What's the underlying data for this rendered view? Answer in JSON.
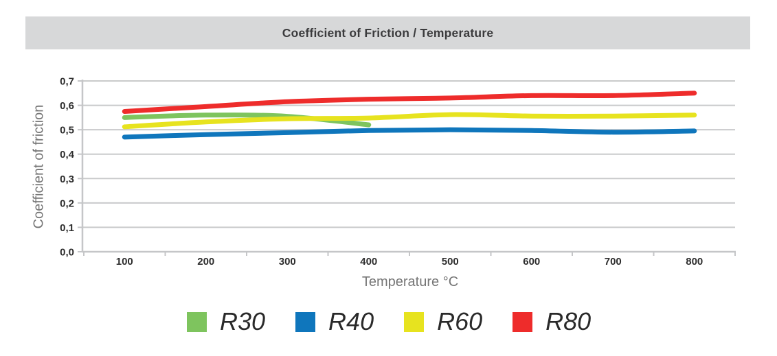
{
  "header": {
    "title": "Coefficient of Friction / Temperature"
  },
  "colors": {
    "title_bar_bg": "#D7D8D9",
    "title_text": "#3B3B3D",
    "gridline": "#C9CACB",
    "axis_line": "#C5C6C8",
    "tick_text": "#2D2D2D",
    "axis_title_text": "#757575",
    "legend_text": "#2A2A2A"
  },
  "chart_data": {
    "type": "line",
    "title": "Coefficient of Friction / Temperature",
    "xlabel": "Temperature °C",
    "ylabel": "Coefficient of friction",
    "x_tick_labels": [
      "100",
      "200",
      "300",
      "400",
      "500",
      "600",
      "700",
      "800"
    ],
    "y_tick_labels": [
      "0,0",
      "0,1",
      "0,2",
      "0,3",
      "0,4",
      "0,5",
      "0,6",
      "0,7"
    ],
    "ylim": [
      0.0,
      0.7
    ],
    "y_step": 0.1,
    "xlim_categories": [
      100,
      800
    ],
    "grid": true,
    "legend_position": "bottom",
    "series": [
      {
        "name": "R30",
        "color": "#7EC45E",
        "x": [
          100,
          200,
          300,
          400
        ],
        "values": [
          0.55,
          0.56,
          0.555,
          0.52
        ]
      },
      {
        "name": "R40",
        "color": "#0F76BC",
        "x": [
          100,
          200,
          300,
          400,
          500,
          600,
          700,
          800
        ],
        "values": [
          0.47,
          0.48,
          0.488,
          0.497,
          0.5,
          0.497,
          0.49,
          0.495
        ]
      },
      {
        "name": "R60",
        "color": "#E7E31F",
        "x": [
          100,
          200,
          300,
          400,
          500,
          600,
          700,
          800
        ],
        "values": [
          0.512,
          0.532,
          0.545,
          0.548,
          0.562,
          0.556,
          0.556,
          0.56
        ]
      },
      {
        "name": "R80",
        "color": "#EE2C2B",
        "x": [
          100,
          200,
          300,
          400,
          500,
          600,
          700,
          800
        ],
        "values": [
          0.575,
          0.595,
          0.615,
          0.625,
          0.63,
          0.64,
          0.64,
          0.65
        ]
      }
    ]
  }
}
